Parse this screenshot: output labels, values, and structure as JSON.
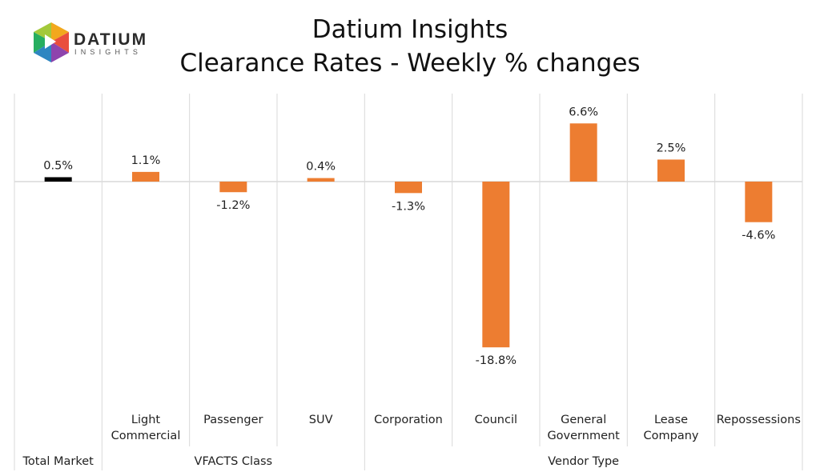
{
  "header": {
    "logo_text": "DATIUM",
    "logo_subtext": "INSIGHTS",
    "title_line1": "Datium Insights",
    "title_line2": "Clearance Rates - Weekly % changes"
  },
  "colors": {
    "total_bar": "#000000",
    "category_bar": "#ED7D31",
    "gridline": "#D9D9D9"
  },
  "chart_data": {
    "type": "bar",
    "title": "Datium Insights Clearance Rates - Weekly % changes",
    "ylabel": "",
    "xlabel": "",
    "ylim": [
      -20,
      8
    ],
    "categories": [
      {
        "label": [
          "Total Market"
        ],
        "group": "Total Market",
        "value": 0.5,
        "data_label": "0.5%"
      },
      {
        "label": [
          "Light",
          "Commercial"
        ],
        "group": "VFACTS Class",
        "value": 1.1,
        "data_label": "1.1%"
      },
      {
        "label": [
          "Passenger"
        ],
        "group": "VFACTS Class",
        "value": -1.2,
        "data_label": "-1.2%"
      },
      {
        "label": [
          "SUV"
        ],
        "group": "VFACTS Class",
        "value": 0.4,
        "data_label": "0.4%"
      },
      {
        "label": [
          "Corporation"
        ],
        "group": "Vendor Type",
        "value": -1.3,
        "data_label": "-1.3%"
      },
      {
        "label": [
          "Council"
        ],
        "group": "Vendor Type",
        "value": -18.8,
        "data_label": "-18.8%"
      },
      {
        "label": [
          "General",
          "Government"
        ],
        "group": "Vendor Type",
        "value": 6.6,
        "data_label": "6.6%"
      },
      {
        "label": [
          "Lease",
          "Company"
        ],
        "group": "Vendor Type",
        "value": 2.5,
        "data_label": "2.5%"
      },
      {
        "label": [
          "Repossessions"
        ],
        "group": "Vendor Type",
        "value": -4.6,
        "data_label": "-4.6%"
      }
    ],
    "groups": [
      "Total Market",
      "VFACTS Class",
      "Vendor Type"
    ],
    "legend": "none",
    "grid": "vertical separators"
  }
}
